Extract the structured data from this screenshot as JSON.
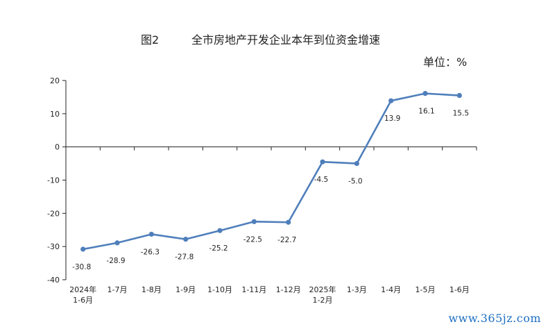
{
  "header": {
    "figure_label": "图2",
    "title": "全市房地产开发企业本年到位资金增速",
    "unit": "单位：%"
  },
  "watermark": "www.365jz.com",
  "chart_data": {
    "type": "line",
    "title": "全市房地产开发企业本年到位资金增速",
    "categories": [
      [
        "2024年",
        "1-6月"
      ],
      [
        "1-7月"
      ],
      [
        "1-8月"
      ],
      [
        "1-9月"
      ],
      [
        "1-10月"
      ],
      [
        "1-11月"
      ],
      [
        "1-12月"
      ],
      [
        "2025年",
        "1-2月"
      ],
      [
        "1-3月"
      ],
      [
        "1-4月"
      ],
      [
        "1-5月"
      ],
      [
        "1-6月"
      ]
    ],
    "series": [
      {
        "values": [
          -30.8,
          -28.9,
          -26.3,
          -27.8,
          -25.2,
          -22.5,
          -22.7,
          -4.5,
          -5.0,
          13.9,
          16.1,
          15.5
        ],
        "labels": [
          "-30.8",
          "-28.9",
          "-26.3",
          "-27.8",
          "-25.2",
          "-22.5",
          "-22.7",
          "-4.5",
          "-5.0",
          "13.9",
          "16.1",
          "15.5"
        ]
      }
    ],
    "ylim": [
      -40,
      20
    ],
    "yticks": [
      20,
      10,
      0,
      -10,
      -20,
      -30,
      -40
    ],
    "grid": false,
    "line_color": "#4f7fbb"
  }
}
